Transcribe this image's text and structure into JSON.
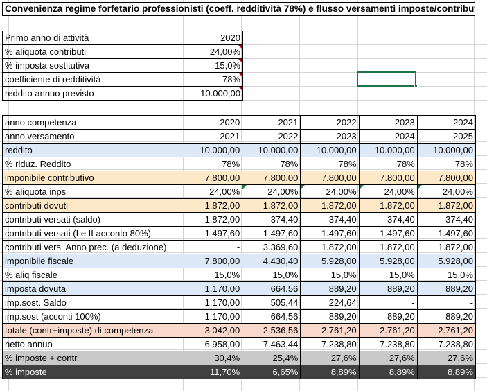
{
  "title": "Convenienza regime forfetario professionisti (coeff. redditività 78%) e flusso versamenti imposte/contributi",
  "params": [
    {
      "label": "Primo anno di attività",
      "value": "2020",
      "flag": false
    },
    {
      "label": "% aliquota contributi",
      "value": "24,00%",
      "flag": true
    },
    {
      "label": "% imposta sostitutiva",
      "value": "15,0%",
      "flag": true
    },
    {
      "label": "coefficiente di redditività",
      "value": "78%",
      "flag": true
    },
    {
      "label": "reddito annuo previsto",
      "value": "10.000,00",
      "flag": true
    }
  ],
  "rows": [
    {
      "label": "anno competenza",
      "style": "",
      "values": [
        "2020",
        "2021",
        "2022",
        "2023",
        "2024"
      ]
    },
    {
      "label": "anno versamento",
      "style": "",
      "values": [
        "2021",
        "2022",
        "2023",
        "2024",
        "2025"
      ]
    },
    {
      "label": "reddito",
      "style": "blue",
      "values": [
        "10.000,00",
        "10.000,00",
        "10.000,00",
        "10.000,00",
        "10.000,00"
      ]
    },
    {
      "label": "% riduz. Reddito",
      "style": "",
      "values": [
        "78%",
        "78%",
        "78%",
        "78%",
        "78%"
      ]
    },
    {
      "label": "imponibile contributivo",
      "style": "orange",
      "values": [
        "7.800,00",
        "7.800,00",
        "7.800,00",
        "7.800,00",
        "7.800,00"
      ]
    },
    {
      "label": "% aliquota inps",
      "style": "",
      "values": [
        "24,00%",
        "24,00%",
        "24,00%",
        "24,00%",
        "24,00%"
      ]
    },
    {
      "label": "contributi dovuti",
      "style": "orange",
      "values": [
        "1.872,00",
        "1.872,00",
        "1.872,00",
        "1.872,00",
        "1.872,00"
      ]
    },
    {
      "label": "contributi versati (saldo)",
      "style": "",
      "values": [
        "1.872,00",
        "374,40",
        "374,40",
        "374,40",
        "374,40"
      ]
    },
    {
      "label": "contributi versati (I e II acconto 80%)",
      "style": "",
      "values": [
        "1.497,60",
        "1.497,60",
        "1.497,60",
        "1.497,60",
        "1.497,60"
      ]
    },
    {
      "label": "contributi vers. Anno prec. (a deduzione)",
      "style": "",
      "values": [
        "-",
        "3.369,60",
        "1.872,00",
        "1.872,00",
        "1.872,00"
      ]
    },
    {
      "label": "imponibile fiscale",
      "style": "blue",
      "values": [
        "7.800,00",
        "4.430,40",
        "5.928,00",
        "5.928,00",
        "5.928,00"
      ]
    },
    {
      "label": "% aliq fiscale",
      "style": "",
      "values": [
        "15,0%",
        "15,0%",
        "15,0%",
        "15,0%",
        "15,0%"
      ]
    },
    {
      "label": "imposta dovuta",
      "style": "blue",
      "values": [
        "1.170,00",
        "664,56",
        "889,20",
        "889,20",
        "889,20"
      ]
    },
    {
      "label": "imp.sost. Saldo",
      "style": "",
      "values": [
        "1.170,00",
        "505,44",
        "224,64",
        "-",
        "-"
      ]
    },
    {
      "label": "imp.sost (acconti 100%)",
      "style": "",
      "values": [
        "1.170,00",
        "664,56",
        "889,20",
        "889,20",
        "889,20"
      ]
    },
    {
      "label": "totale (contr+imposte) di competenza",
      "style": "pink",
      "values": [
        "3.042,00",
        "2.536,56",
        "2.761,20",
        "2.761,20",
        "2.761,20"
      ]
    },
    {
      "label": "netto annuo",
      "style": "",
      "values": [
        "6.958,00",
        "7.463,44",
        "7.238,80",
        "7.238,80",
        "7.238,80"
      ]
    },
    {
      "label": "% imposte + contr.",
      "style": "gray",
      "values": [
        "30,4%",
        "25,4%",
        "27,6%",
        "27,6%",
        "27,6%"
      ]
    },
    {
      "label": "% imposte",
      "style": "dark",
      "values": [
        "11,70%",
        "6,65%",
        "8,89%",
        "8,89%",
        "8,89%"
      ]
    }
  ]
}
